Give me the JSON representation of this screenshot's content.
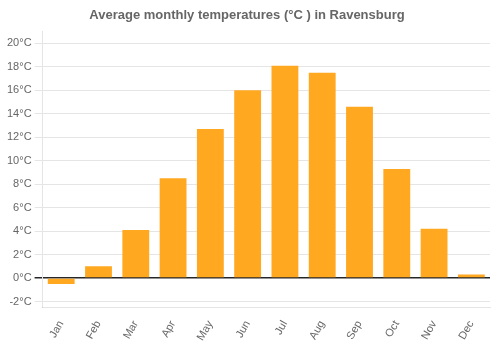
{
  "chart_data": {
    "type": "bar",
    "title": "Average monthly temperatures (°C ) in Ravensburg",
    "categories": [
      "Jan",
      "Feb",
      "Mar",
      "Apr",
      "May",
      "Jun",
      "Jul",
      "Aug",
      "Sep",
      "Oct",
      "Nov",
      "Dec"
    ],
    "values": [
      -0.5,
      1.0,
      4.1,
      8.5,
      12.7,
      16.0,
      18.1,
      17.5,
      14.6,
      9.3,
      4.2,
      0.3
    ],
    "color": "#FFA820",
    "ylim": [
      -2.5,
      21
    ],
    "yticks": [
      {
        "value": -2,
        "label": "-2°C"
      },
      {
        "value": 0,
        "label": "0°C"
      },
      {
        "value": 2,
        "label": "2°C"
      },
      {
        "value": 4,
        "label": "4°C"
      },
      {
        "value": 6,
        "label": "6°C"
      },
      {
        "value": 8,
        "label": "8°C"
      },
      {
        "value": 10,
        "label": "10°C"
      },
      {
        "value": 12,
        "label": "12°C"
      },
      {
        "value": 14,
        "label": "14°C"
      },
      {
        "value": 16,
        "label": "16°C"
      },
      {
        "value": 18,
        "label": "18°C"
      },
      {
        "value": 20,
        "label": "20°C"
      }
    ],
    "grid": true
  }
}
